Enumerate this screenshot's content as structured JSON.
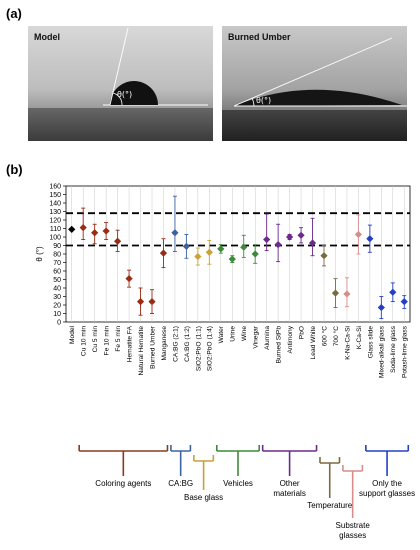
{
  "panel_a": {
    "label": "(a)",
    "left_title": "Model",
    "right_title": "Burned Umber",
    "angle_symbol": "θ(°)"
  },
  "panel_b": {
    "label": "(b)"
  },
  "chart_data": {
    "type": "scatter",
    "ylabel": "θ (°)",
    "ylim": [
      0,
      160
    ],
    "yticks": [
      0,
      10,
      20,
      30,
      40,
      50,
      60,
      70,
      80,
      90,
      100,
      110,
      120,
      130,
      140,
      150,
      160
    ],
    "reference_lines": [
      90,
      128
    ],
    "grid": "vertical lines at each category",
    "categories": [
      "Model",
      "Cu 10 min",
      "Cu 5 min",
      "Fe 10 min",
      "Fe 5 min",
      "Hematite FA",
      "Natural Hematite",
      "Burned Umber",
      "Manganese",
      "CA:BG (2:1)",
      "CA:BG (1:2)",
      "SiO2:PbO (1:1)",
      "SiO2:PbO (1:4)",
      "Water",
      "Urine",
      "Wine",
      "Vinegar",
      "Alumina",
      "Burned StPb",
      "Antimony",
      "PbO",
      "Lead White",
      "600 °C",
      "700 °C",
      "K-Na-Ca-Si",
      "K-Ca-Si",
      "Glass slide",
      "Mixed-alkali glass",
      "Soda-lime glass",
      "Potash-lime glass"
    ],
    "values": [
      109,
      111,
      105,
      107,
      95,
      51,
      24,
      24,
      81,
      105,
      89,
      77,
      82,
      86,
      74,
      88,
      80,
      97,
      91,
      100,
      102,
      93,
      78,
      34,
      33,
      103,
      98,
      17,
      35,
      24
    ],
    "error": [
      [
        0,
        0
      ],
      [
        14,
        23
      ],
      [
        13,
        10
      ],
      [
        10,
        10
      ],
      [
        12,
        13
      ],
      [
        10,
        10
      ],
      [
        16,
        16
      ],
      [
        14,
        14
      ],
      [
        17,
        17
      ],
      [
        22,
        43
      ],
      [
        14,
        14
      ],
      [
        10,
        10
      ],
      [
        14,
        14
      ],
      [
        5,
        5
      ],
      [
        4,
        4
      ],
      [
        12,
        14
      ],
      [
        11,
        11
      ],
      [
        13,
        30
      ],
      [
        20,
        24
      ],
      [
        3,
        3
      ],
      [
        9,
        9
      ],
      [
        15,
        29
      ],
      [
        12,
        12
      ],
      [
        17,
        17
      ],
      [
        15,
        19
      ],
      [
        23,
        23
      ],
      [
        16,
        16
      ],
      [
        13,
        13
      ],
      [
        11,
        11
      ],
      [
        8,
        7
      ]
    ],
    "colors": [
      "#000000",
      "#9b2b14",
      "#9b2b14",
      "#9b2b14",
      "#9b2b14",
      "#9b2b14",
      "#9b2b14",
      "#9b2b14",
      "#9b2b14",
      "#3b63a3",
      "#3b63a3",
      "#c6a238",
      "#c6a238",
      "#3f8a3a",
      "#3f8a3a",
      "#3f8a3a",
      "#3f8a3a",
      "#6b2a8c",
      "#6b2a8c",
      "#6b2a8c",
      "#6b2a8c",
      "#6b2a8c",
      "#7a6a3f",
      "#7a6a3f",
      "#d98c8c",
      "#d98c8c",
      "#2340c4",
      "#2340c4",
      "#2340c4",
      "#2340c4"
    ],
    "groups": [
      {
        "name": "Coloring agents",
        "start": 1,
        "end": 8,
        "color": "#8b3a1c"
      },
      {
        "name": "CA:BG",
        "start": 9,
        "end": 10,
        "color": "#3b63a3"
      },
      {
        "name": "Base glass",
        "start": 11,
        "end": 12,
        "color": "#c6a238"
      },
      {
        "name": "Vehicles",
        "start": 13,
        "end": 16,
        "color": "#3f8a3a"
      },
      {
        "name": "Other materials",
        "start": 17,
        "end": 21,
        "color": "#6b2a8c"
      },
      {
        "name": "Temperature",
        "start": 22,
        "end": 23,
        "color": "#7a6a3f"
      },
      {
        "name": "Substrate glasses",
        "start": 24,
        "end": 25,
        "color": "#d98c8c"
      },
      {
        "name": "Only the support glasses",
        "start": 26,
        "end": 29,
        "color": "#2340c4"
      }
    ]
  }
}
